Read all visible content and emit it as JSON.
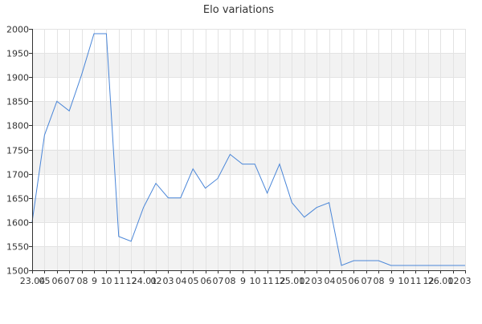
{
  "chart_data": {
    "type": "line",
    "title": "Elo variations",
    "xlabel": "",
    "ylabel": "",
    "ylim": [
      1500,
      2000
    ],
    "y_ticks": [
      1500,
      1550,
      1600,
      1650,
      1700,
      1750,
      1800,
      1850,
      1900,
      1950,
      2000
    ],
    "grid": true,
    "alternating_bands": true,
    "x_tick_labels": [
      "23.04",
      "05",
      "06",
      "07",
      "08",
      "9",
      "10",
      "11",
      "12",
      "24.01",
      "02",
      "03",
      "04",
      "05",
      "06",
      "07",
      "08",
      "9",
      "10",
      "11",
      "12",
      "25.01",
      "02",
      "03",
      "04",
      "05",
      "06",
      "07",
      "08",
      "9",
      "10",
      "11",
      "12",
      "26.01",
      "02",
      "03"
    ],
    "series": [
      {
        "color": "#4a86d8",
        "values": [
          1600,
          1780,
          1850,
          1830,
          1905,
          1990,
          1990,
          1570,
          1560,
          1630,
          1680,
          1650,
          1650,
          1710,
          1670,
          1690,
          1740,
          1720,
          1720,
          1660,
          1720,
          1640,
          1610,
          1630,
          1640,
          1510,
          1520,
          1520,
          1520,
          1510,
          1510,
          1510,
          1510,
          1510,
          1510,
          1510
        ]
      }
    ]
  }
}
